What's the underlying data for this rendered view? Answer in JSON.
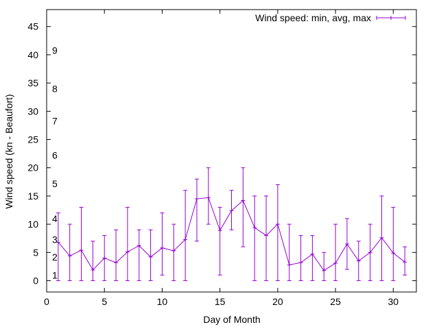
{
  "chart_data": {
    "type": "line",
    "title": "",
    "xlabel": "Day of Month",
    "ylabel": "Wind speed (kn - Beaufort)",
    "xlim": [
      0,
      32
    ],
    "ylim": [
      -2,
      48
    ],
    "xticks": [
      0,
      5,
      10,
      15,
      20,
      25,
      30
    ],
    "yticks": [
      0,
      5,
      10,
      15,
      20,
      25,
      30,
      35,
      40,
      45
    ],
    "legend_position": "top-right",
    "grid": false,
    "series_color": "#9400d3",
    "beaufort_labels": [
      {
        "label": "1",
        "y": 1
      },
      {
        "label": "2",
        "y": 4.2
      },
      {
        "label": "3",
        "y": 7.3
      },
      {
        "label": "4",
        "y": 11
      },
      {
        "label": "5",
        "y": 17.2
      },
      {
        "label": "6",
        "y": 22.2
      },
      {
        "label": "7",
        "y": 28.3
      },
      {
        "label": "8",
        "y": 34
      },
      {
        "label": "9",
        "y": 40.8
      }
    ],
    "series": [
      {
        "name": "Wind speed: min, avg, max",
        "x": [
          1,
          2,
          3,
          4,
          5,
          6,
          7,
          8,
          9,
          10,
          11,
          12,
          13,
          14,
          15,
          16,
          17,
          18,
          19,
          20,
          21,
          22,
          23,
          24,
          25,
          26,
          27,
          28,
          29,
          30,
          31
        ],
        "avg": [
          6.8,
          4.4,
          5.4,
          1.9,
          4.0,
          3.2,
          5.1,
          6.2,
          4.2,
          5.8,
          5.3,
          7.3,
          14.5,
          14.7,
          8.9,
          12.4,
          14.2,
          9.4,
          8.0,
          10.0,
          2.8,
          3.2,
          4.7,
          1.8,
          3.1,
          6.5,
          3.5,
          5.0,
          7.6,
          4.9,
          3.3
        ],
        "min": [
          0,
          0,
          0,
          0,
          0,
          0,
          0,
          0,
          0,
          1,
          0,
          0,
          7,
          10,
          1,
          9,
          6,
          0,
          0,
          0,
          0,
          0,
          0,
          0,
          0,
          2,
          0,
          0,
          0,
          0,
          1
        ],
        "max": [
          12,
          10,
          13,
          7,
          8,
          9,
          13,
          9,
          9,
          12,
          10,
          16,
          18,
          20,
          13,
          16,
          20,
          15,
          15,
          17,
          10,
          8,
          8,
          5,
          10,
          11,
          7,
          10,
          15,
          13,
          6
        ]
      }
    ]
  }
}
